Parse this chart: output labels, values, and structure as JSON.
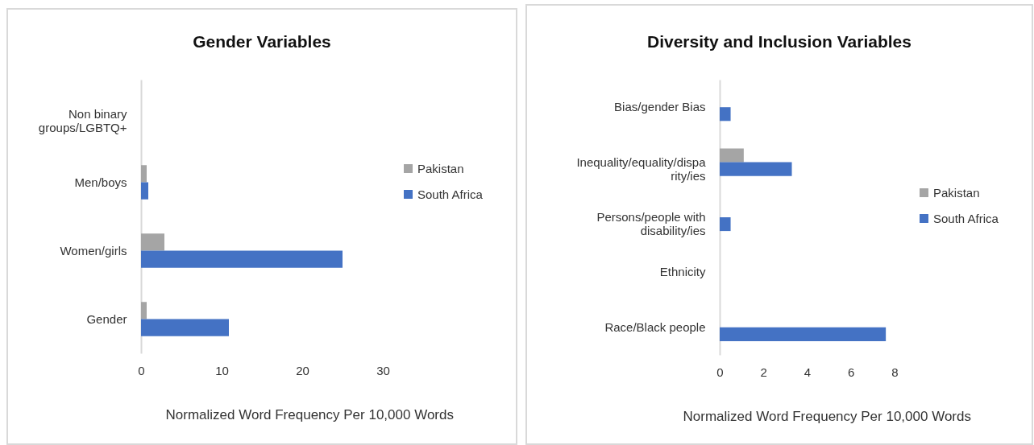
{
  "chart_data": [
    {
      "type": "bar",
      "orientation": "horizontal",
      "title": "Gender Variables",
      "xlabel": "Normalized Word Frequency Per 10,000 Words",
      "categories": [
        "Non binary groups/LGBTQ+",
        "Men/boys",
        "Women/girls",
        "Gender"
      ],
      "series": [
        {
          "name": "Pakistan",
          "color": "#a5a5a5",
          "values": [
            0,
            0.7,
            2.9,
            0.7
          ]
        },
        {
          "name": "South Africa",
          "color": "#4472c4",
          "values": [
            0,
            0.9,
            25.0,
            10.9
          ]
        }
      ],
      "xlim": [
        0,
        30
      ],
      "xticks": [
        0,
        10,
        20,
        30
      ],
      "legend": "right"
    },
    {
      "type": "bar",
      "orientation": "horizontal",
      "title": "Diversity and Inclusion Variables",
      "xlabel": "Normalized Word Frequency Per 10,000 Words",
      "categories": [
        "Bias/gender Bias",
        "Inequality/equality/disparity/ies",
        "Persons/people with disability/ies",
        "Ethnicity",
        "Race/Black people"
      ],
      "series": [
        {
          "name": "Pakistan",
          "color": "#a5a5a5",
          "values": [
            0,
            1.1,
            0,
            0,
            0
          ]
        },
        {
          "name": "South Africa",
          "color": "#4472c4",
          "values": [
            0.5,
            3.3,
            0.5,
            0,
            7.6
          ]
        }
      ],
      "xlim": [
        0,
        8
      ],
      "xticks": [
        0,
        2,
        4,
        6,
        8
      ],
      "legend": "right"
    }
  ]
}
